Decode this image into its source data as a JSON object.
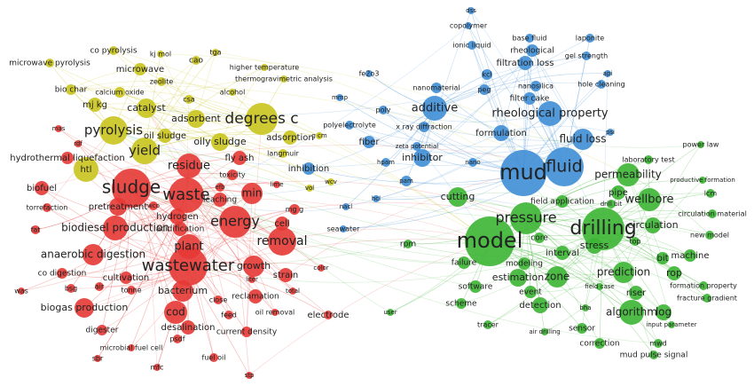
{
  "clusters": [
    {
      "color": "#e53935",
      "nodes": [
        "sludge",
        "waste",
        "wastewater",
        "energy",
        "removal",
        "residue",
        "plant",
        "growth",
        "min",
        "biodiesel production",
        "anaerobic digestion",
        "pretreatment",
        "biofuel",
        "torrefaction",
        "fat",
        "co digestion",
        "bsg",
        "was",
        "biogas production",
        "cultivation",
        "air",
        "tonne",
        "bacterium",
        "cod",
        "desalination",
        "digester",
        "psdf",
        "microbial fuel cell",
        "sbr",
        "mfc",
        "fuel oil",
        "current density",
        "feed",
        "close",
        "reclamation",
        "oil removal",
        "strain",
        "liter",
        "total",
        "color",
        "electrode",
        "stp",
        "fly ash",
        "toxicity",
        "leaching",
        "efb",
        "hydrogen",
        "acidification",
        "wco",
        "cell",
        "mg g",
        "lime",
        "hydrothermal liquefaction",
        "rdf",
        "mas"
      ]
    },
    {
      "color": "#c9c41e",
      "nodes": [
        "degrees c",
        "pyrolysis",
        "yield",
        "catalyst",
        "adsorbent",
        "oily sludge",
        "oil sludge",
        "mj kg",
        "calcium oxide",
        "bio char",
        "zeolite",
        "csa",
        "microwave",
        "microwave pyrolysis",
        "co pyrolysis",
        "kj mol",
        "cao",
        "tga",
        "higher temperature",
        "thermogravimetric analysis",
        "alcohol",
        "adsorption",
        "g cm",
        "langmuir",
        "htl",
        "vol",
        "wcv"
      ]
    },
    {
      "color": "#3f8ed6",
      "nodes": [
        "mud",
        "fluid",
        "additive",
        "rheological property",
        "fluid loss",
        "formulation",
        "inhibitor",
        "filtration loss",
        "rheological",
        "base fluid",
        "ionic liquid",
        "copolymer",
        "dss",
        "laponite",
        "gel strength",
        "kcl",
        "peg",
        "nanosilica",
        "nanomaterial",
        "filter cake",
        "api",
        "hole cleaning",
        "psi",
        "poly",
        "x ray diffraction",
        "polyelectrolyte",
        "fiber",
        "zeta potential",
        "hpam",
        "nano",
        "pam",
        "inhibition",
        "fe2o3",
        "mmp",
        "hcl",
        "nacl",
        "seawater"
      ]
    },
    {
      "color": "#3cb534",
      "nodes": [
        "model",
        "drilling",
        "pressure",
        "permeability",
        "wellbore",
        "cutting",
        "circulation",
        "stress",
        "zone",
        "prediction",
        "algorithm",
        "log",
        "estimation",
        "interval",
        "core",
        "modeling",
        "failure",
        "software",
        "event",
        "detection",
        "scheme",
        "tracer",
        "air drilling",
        "bha",
        "sensor",
        "correction",
        "mwd",
        "mud pulse signal",
        "input parameter",
        "riser",
        "field case",
        "formation property",
        "fracture gradient",
        "rop",
        "bit",
        "machine",
        "new model",
        "circulation material",
        "lcm",
        "productive formation",
        "power law",
        "laboratory test",
        "pipe",
        "drill bit",
        "field application",
        "top",
        "rpm",
        "user"
      ]
    }
  ]
}
